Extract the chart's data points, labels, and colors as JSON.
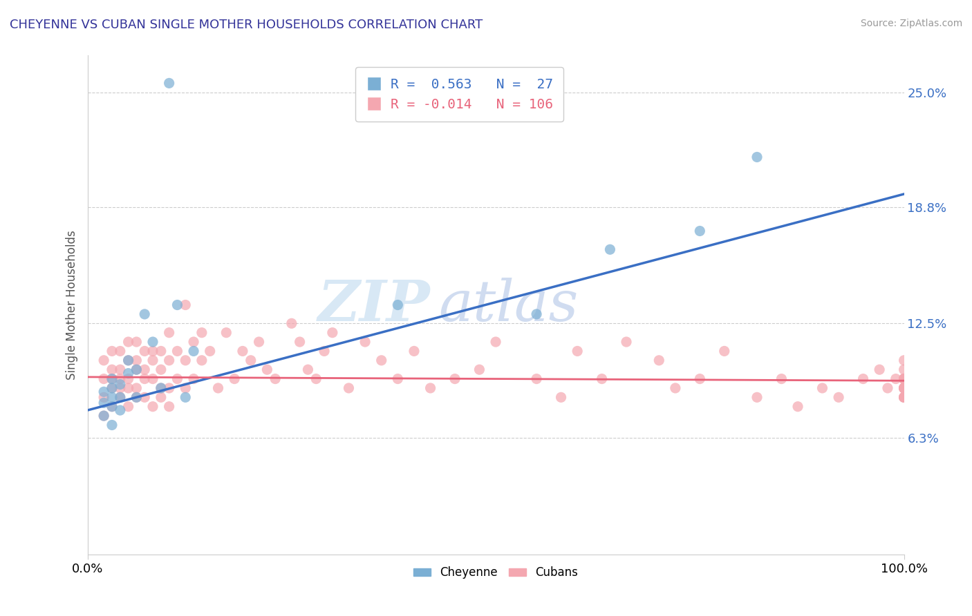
{
  "title": "CHEYENNE VS CUBAN SINGLE MOTHER HOUSEHOLDS CORRELATION CHART",
  "source": "Source: ZipAtlas.com",
  "ylabel": "Single Mother Households",
  "cheyenne_color": "#7BAFD4",
  "cuban_color": "#F4A7B0",
  "cheyenne_line_color": "#3A6FC4",
  "cuban_line_color": "#E8637A",
  "cheyenne_R": 0.563,
  "cheyenne_N": 27,
  "cuban_R": -0.014,
  "cuban_N": 106,
  "watermark_zip": "ZIP",
  "watermark_atlas": "atlas",
  "background_color": "#FFFFFF",
  "ytick_pct": [
    6.3,
    12.5,
    18.8,
    25.0
  ],
  "ytick_labels": [
    "6.3%",
    "12.5%",
    "18.8%",
    "25.0%"
  ],
  "cheyenne_x": [
    2,
    2,
    2,
    3,
    3,
    3,
    3,
    3,
    4,
    4,
    4,
    5,
    5,
    6,
    6,
    7,
    8,
    9,
    10,
    11,
    12,
    13,
    38,
    55,
    64,
    75,
    82
  ],
  "cheyenne_y": [
    7.5,
    8.2,
    8.8,
    7.0,
    8.0,
    8.5,
    9.0,
    9.5,
    7.8,
    8.5,
    9.2,
    9.8,
    10.5,
    8.5,
    10.0,
    13.0,
    11.5,
    9.0,
    25.5,
    13.5,
    8.5,
    11.0,
    13.5,
    13.0,
    16.5,
    17.5,
    21.5
  ],
  "cuban_x": [
    2,
    2,
    2,
    2,
    3,
    3,
    3,
    3,
    3,
    4,
    4,
    4,
    4,
    4,
    5,
    5,
    5,
    5,
    5,
    6,
    6,
    6,
    6,
    6,
    7,
    7,
    7,
    7,
    8,
    8,
    8,
    8,
    9,
    9,
    9,
    9,
    10,
    10,
    10,
    10,
    11,
    11,
    12,
    12,
    12,
    13,
    13,
    14,
    14,
    15,
    16,
    17,
    18,
    19,
    20,
    21,
    22,
    23,
    25,
    26,
    27,
    28,
    29,
    30,
    32,
    34,
    36,
    38,
    40,
    42,
    45,
    48,
    50,
    55,
    58,
    60,
    63,
    66,
    70,
    72,
    75,
    78,
    82,
    85,
    87,
    90,
    92,
    95,
    97,
    98,
    99,
    100,
    100,
    100,
    100,
    100,
    100,
    100,
    100,
    100,
    100,
    100,
    100,
    100,
    100,
    100
  ],
  "cuban_y": [
    7.5,
    8.5,
    9.5,
    10.5,
    8.0,
    9.0,
    9.5,
    10.0,
    11.0,
    8.5,
    9.0,
    9.5,
    10.0,
    11.0,
    8.0,
    9.0,
    9.5,
    10.5,
    11.5,
    8.5,
    9.0,
    10.0,
    10.5,
    11.5,
    8.5,
    9.5,
    10.0,
    11.0,
    8.0,
    9.5,
    10.5,
    11.0,
    8.5,
    9.0,
    10.0,
    11.0,
    8.0,
    9.0,
    10.5,
    12.0,
    9.5,
    11.0,
    9.0,
    10.5,
    13.5,
    9.5,
    11.5,
    10.5,
    12.0,
    11.0,
    9.0,
    12.0,
    9.5,
    11.0,
    10.5,
    11.5,
    10.0,
    9.5,
    12.5,
    11.5,
    10.0,
    9.5,
    11.0,
    12.0,
    9.0,
    11.5,
    10.5,
    9.5,
    11.0,
    9.0,
    9.5,
    10.0,
    11.5,
    9.5,
    8.5,
    11.0,
    9.5,
    11.5,
    10.5,
    9.0,
    9.5,
    11.0,
    8.5,
    9.5,
    8.0,
    9.0,
    8.5,
    9.5,
    10.0,
    9.0,
    9.5,
    10.5,
    9.0,
    8.5,
    9.5,
    9.0,
    8.5,
    9.5,
    10.0,
    9.0,
    9.5,
    8.5,
    9.0,
    9.5,
    8.5,
    9.0
  ]
}
